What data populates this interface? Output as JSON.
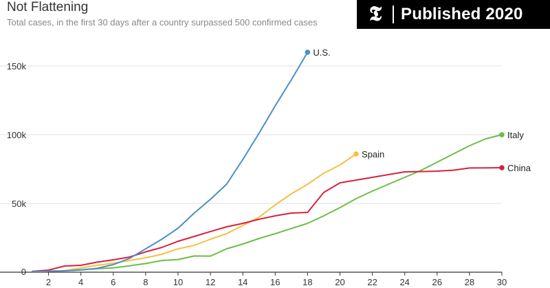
{
  "header": {
    "badge_logo": "𝕿",
    "badge_text": "Published 2020"
  },
  "chart_data": {
    "type": "line",
    "title": "Not Flattening",
    "subtitle": "Total cases, in the first 30 days after a country surpassed 500 confirmed cases",
    "xlabel": "",
    "ylabel": "",
    "xlim": [
      1,
      30
    ],
    "ylim": [
      0,
      160000
    ],
    "y_ticks": [
      {
        "value": 0,
        "label": "0"
      },
      {
        "value": 50000,
        "label": "50k"
      },
      {
        "value": 100000,
        "label": "100k"
      },
      {
        "value": 150000,
        "label": "150k"
      }
    ],
    "x_ticks": [
      2,
      4,
      6,
      8,
      10,
      12,
      14,
      16,
      18,
      20,
      22,
      24,
      26,
      28,
      30
    ],
    "grid": true,
    "series": [
      {
        "name": "U.S.",
        "color": "#4a8ec6",
        "x": [
          1,
          2,
          3,
          4,
          5,
          6,
          7,
          8,
          9,
          10,
          11,
          12,
          13,
          14,
          15,
          16,
          17,
          18
        ],
        "values": [
          500,
          700,
          1000,
          1600,
          2800,
          5500,
          10000,
          17000,
          24000,
          32000,
          43000,
          53000,
          64000,
          82000,
          101000,
          121000,
          140000,
          160000
        ]
      },
      {
        "name": "Spain",
        "color": "#f5c040",
        "x": [
          1,
          2,
          3,
          4,
          5,
          6,
          7,
          8,
          9,
          10,
          11,
          12,
          13,
          14,
          15,
          16,
          17,
          18,
          19,
          20,
          21
        ],
        "values": [
          500,
          700,
          1200,
          3000,
          5000,
          6500,
          8500,
          10500,
          13000,
          17000,
          19500,
          24000,
          28000,
          34000,
          40000,
          49000,
          57000,
          64000,
          72000,
          78000,
          86000
        ]
      },
      {
        "name": "Italy",
        "color": "#6cbd45",
        "x": [
          1,
          2,
          3,
          4,
          5,
          6,
          7,
          8,
          9,
          10,
          11,
          12,
          13,
          14,
          15,
          16,
          17,
          18,
          19,
          20,
          21,
          22,
          23,
          24,
          25,
          26,
          27,
          28,
          29,
          30
        ],
        "values": [
          500,
          700,
          1100,
          1700,
          2500,
          3100,
          4600,
          6300,
          8500,
          9200,
          11800,
          11700,
          17000,
          20500,
          24500,
          28000,
          31800,
          35500,
          41000,
          47000,
          53500,
          59000,
          64000,
          69000,
          74000,
          80000,
          86000,
          92000,
          97000,
          100000
        ]
      },
      {
        "name": "China",
        "color": "#d8203f",
        "x": [
          1,
          2,
          3,
          4,
          5,
          6,
          7,
          8,
          9,
          10,
          11,
          12,
          13,
          14,
          15,
          16,
          17,
          18,
          19,
          20,
          21,
          22,
          23,
          24,
          25,
          26,
          27,
          28,
          29,
          30
        ],
        "values": [
          600,
          1500,
          4500,
          5000,
          7300,
          9000,
          11000,
          14800,
          18000,
          22500,
          26000,
          29600,
          33000,
          35500,
          38500,
          41000,
          43000,
          43500,
          58000,
          65000,
          67000,
          69000,
          71000,
          73000,
          73200,
          73500,
          74200,
          75800,
          75900,
          76000
        ]
      }
    ]
  }
}
